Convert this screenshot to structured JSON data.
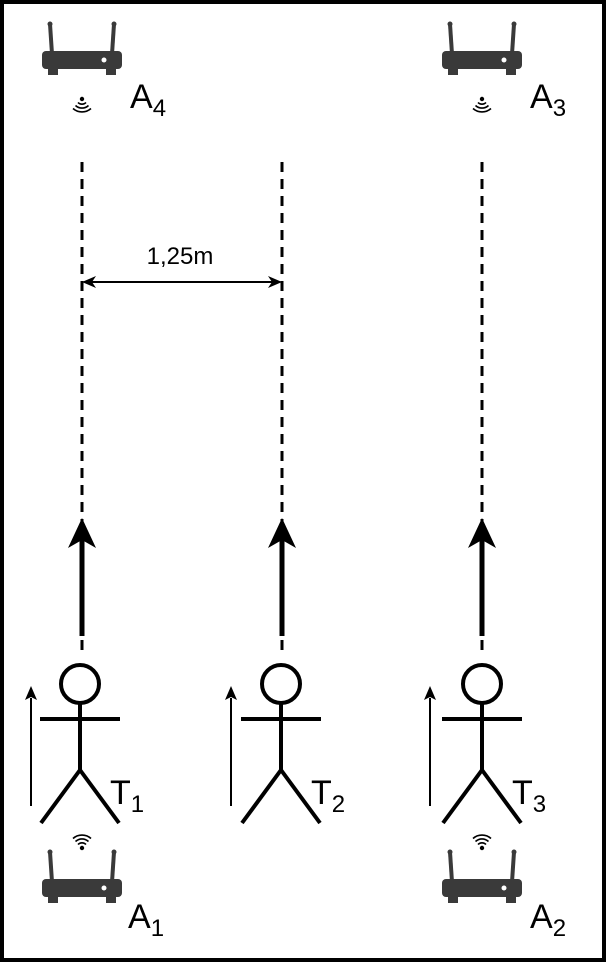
{
  "distance_label": "1,25m",
  "anchors": [
    {
      "id": "A4",
      "letter": "A",
      "index": "4"
    },
    {
      "id": "A3",
      "letter": "A",
      "index": "3"
    },
    {
      "id": "A1",
      "letter": "A",
      "index": "1"
    },
    {
      "id": "A2",
      "letter": "A",
      "index": "2"
    }
  ],
  "tags": [
    {
      "id": "T1",
      "letter": "T",
      "index": "1"
    },
    {
      "id": "T2",
      "letter": "T",
      "index": "2"
    },
    {
      "id": "T3",
      "letter": "T",
      "index": "3"
    }
  ],
  "colors": {
    "ink": "#000000",
    "router": "#3a3a3a",
    "background": "#ffffff"
  },
  "icons": {
    "router": "wifi-router-icon",
    "signal": "wifi-signal-icon",
    "person": "stick-figure-icon"
  }
}
